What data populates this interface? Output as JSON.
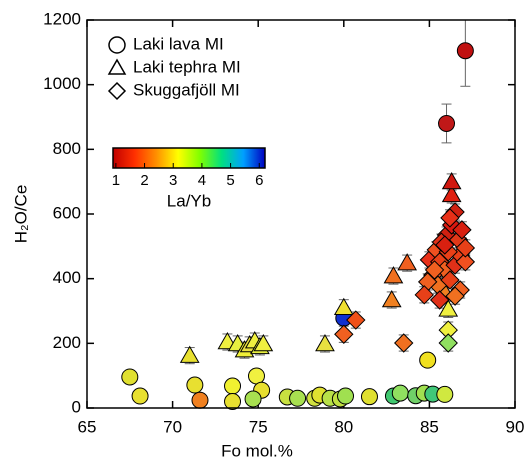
{
  "chart_data": {
    "type": "scatter",
    "xlabel": "Fo mol.%",
    "ylabel": "H₂O/Ce",
    "xlim": [
      65,
      90
    ],
    "xticks": [
      65,
      70,
      75,
      80,
      85,
      90
    ],
    "ylim": [
      0,
      1200
    ],
    "yticks": [
      0,
      200,
      400,
      600,
      800,
      1000,
      1200
    ],
    "series": [
      {
        "name": "Laki lava MI",
        "marker": "circle",
        "x": [
          87.1,
          86.0,
          80.0,
          84.9,
          67.5,
          68.1,
          71.3,
          71.6,
          73.5,
          73.5,
          74.9,
          75.2,
          74.7,
          76.7,
          77.3,
          78.3,
          78.6,
          79.2,
          79.8,
          80.1,
          81.5,
          82.9,
          83.3,
          84.2,
          84.7,
          85.2,
          85.9
        ],
        "values": [
          1105,
          880,
          278,
          148,
          96,
          37,
          71,
          24,
          68,
          20,
          99,
          55,
          28,
          34,
          30,
          30,
          40,
          30,
          28,
          37,
          35,
          37,
          46,
          38,
          46,
          43,
          42
        ],
        "errors": [
          110,
          60,
          20,
          null,
          null,
          null,
          null,
          null,
          null,
          null,
          null,
          null,
          null,
          null,
          null,
          null,
          null,
          null,
          null,
          null,
          null,
          null,
          null,
          null,
          null,
          null,
          null
        ],
        "colors": [
          "#c01010",
          "#c01818",
          "#1030d0",
          "#f0e020",
          "#e0e030",
          "#e8e030",
          "#e8e030",
          "#f08020",
          "#f0f030",
          "#e8e030",
          "#f0f040",
          "#e8e030",
          "#a8e050",
          "#c8e040",
          "#a8e050",
          "#d0e040",
          "#e0e030",
          "#b8e048",
          "#c0e040",
          "#a0e050",
          "#e0e030",
          "#40c870",
          "#90e060",
          "#70d068",
          "#a0e050",
          "#40c878",
          "#d0e840"
        ]
      },
      {
        "name": "Laki tephra MI",
        "marker": "triangle",
        "x": [
          71.0,
          73.2,
          73.8,
          74.2,
          74.5,
          74.8,
          75.1,
          75.3,
          78.9,
          80.0,
          82.8,
          82.9,
          83.7,
          85.9,
          86.3,
          86.3,
          86.1
        ],
        "values": [
          162,
          204,
          198,
          179,
          195,
          207,
          189,
          198,
          198,
          310,
          334,
          408,
          448,
          358,
          659,
          699,
          305
        ],
        "errors": [
          25,
          25,
          25,
          25,
          25,
          25,
          25,
          25,
          25,
          25,
          25,
          25,
          25,
          25,
          25,
          25,
          25
        ],
        "colors": [
          "#e8e030",
          "#f0f040",
          "#e8f040",
          "#f0f038",
          "#e8e040",
          "#f0f040",
          "#e8f040",
          "#f0f040",
          "#e8e040",
          "#f0e030",
          "#f08020",
          "#f07020",
          "#f06020",
          "#f08020",
          "#e02010",
          "#d01810",
          "#f0f040"
        ]
      },
      {
        "name": "Skuggafjöll MI",
        "marker": "diamond",
        "x": [
          80.0,
          80.7,
          83.5,
          86.1,
          86.1,
          85.0,
          85.4,
          85.6,
          85.9,
          85.2,
          85.5,
          86.2,
          86.5,
          86.8,
          86.0,
          86.3,
          86.5,
          86.1,
          85.7,
          86.7,
          86.9,
          87.1,
          87.1,
          86.8,
          86.5,
          84.9,
          84.7,
          85.3,
          85.6,
          85.9,
          86.2
        ],
        "values": [
          228,
          272,
          201,
          241,
          201,
          458,
          489,
          452,
          427,
          411,
          380,
          396,
          442,
          473,
          535,
          566,
          606,
          483,
          513,
          520,
          551,
          452,
          495,
          365,
          346,
          390,
          350,
          427,
          334,
          504,
          588
        ],
        "errors": [
          25,
          25,
          25,
          25,
          25,
          25,
          25,
          25,
          25,
          25,
          25,
          25,
          25,
          25,
          25,
          25,
          25,
          25,
          25,
          25,
          25,
          25,
          25,
          25,
          25,
          25,
          25,
          25,
          25,
          25,
          25
        ],
        "colors": [
          "#f06020",
          "#f05018",
          "#f07020",
          "#f0f040",
          "#90e060",
          "#e83018",
          "#f05020",
          "#e84018",
          "#f06020",
          "#f05020",
          "#f07020",
          "#e84018",
          "#e03018",
          "#e84018",
          "#d02010",
          "#d81810",
          "#d02010",
          "#e84018",
          "#e03018",
          "#e03818",
          "#d82010",
          "#f05020",
          "#e84018",
          "#f06020",
          "#f07020",
          "#f06020",
          "#e84018",
          "#f06020",
          "#e03018",
          "#d82010",
          "#e83018"
        ]
      }
    ],
    "colorbar": {
      "label": "La/Yb",
      "clim": [
        0.9,
        6.2
      ],
      "ticks": [
        1,
        2,
        3,
        4,
        5,
        6
      ],
      "colormap": [
        "#c00000",
        "#ff3000",
        "#ff9000",
        "#ffff00",
        "#80ff00",
        "#00e080",
        "#00a0ff",
        "#0000c0"
      ]
    }
  }
}
